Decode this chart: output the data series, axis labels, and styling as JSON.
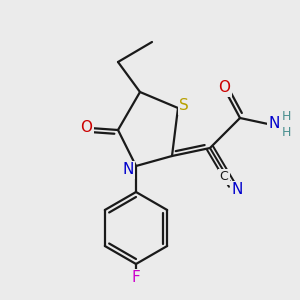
{
  "bg_color": "#ebebeb",
  "bond_color": "#1a1a1a",
  "bond_width": 1.6,
  "atom_colors": {
    "S": "#b8a000",
    "N": "#0000cc",
    "O": "#cc0000",
    "F": "#cc00cc",
    "C": "#1a1a1a",
    "H": "#4a9090"
  },
  "font_size": 11,
  "font_size_H": 9,
  "font_size_label": 10
}
